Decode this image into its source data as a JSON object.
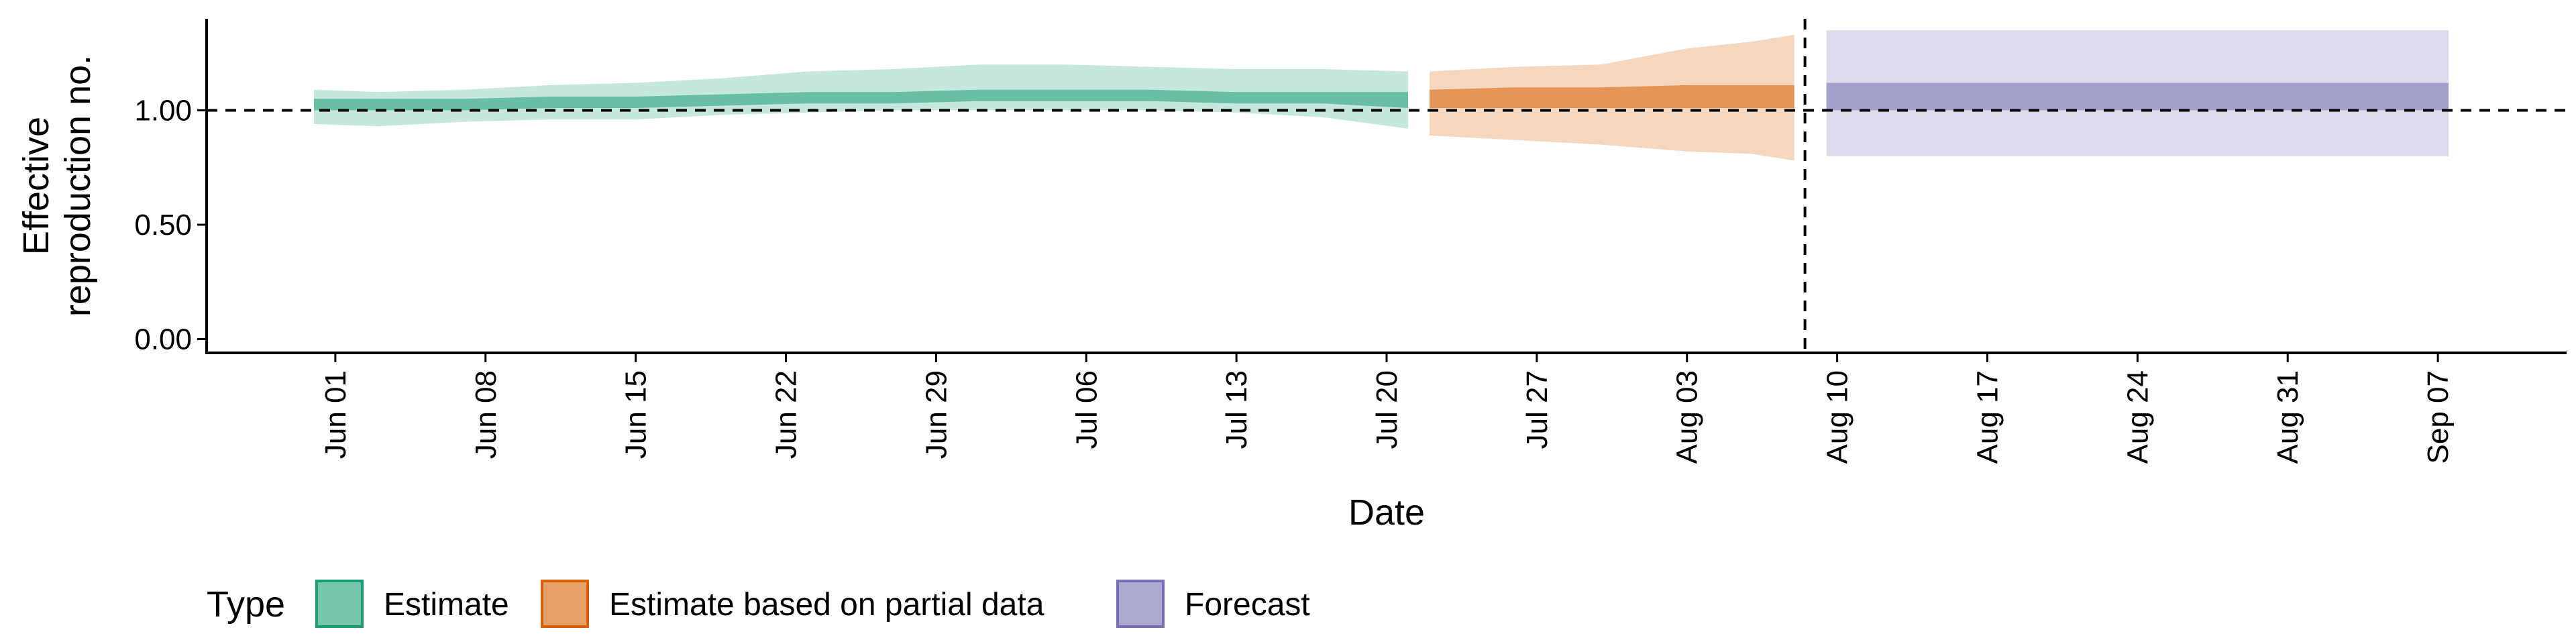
{
  "chart_data": {
    "type": "area",
    "xlabel": "Date",
    "ylabel_lines": [
      "Effective",
      "reproduction no."
    ],
    "ylim": [
      -0.06,
      1.4
    ],
    "y_ticks": [
      {
        "value": 0.0,
        "label": "0.00"
      },
      {
        "value": 0.5,
        "label": "0.50"
      },
      {
        "value": 1.0,
        "label": "1.00"
      }
    ],
    "x_ticks": [
      {
        "day": 0,
        "label": "Jun 01"
      },
      {
        "day": 7,
        "label": "Jun 08"
      },
      {
        "day": 14,
        "label": "Jun 15"
      },
      {
        "day": 21,
        "label": "Jun 22"
      },
      {
        "day": 28,
        "label": "Jun 29"
      },
      {
        "day": 35,
        "label": "Jul 06"
      },
      {
        "day": 42,
        "label": "Jul 13"
      },
      {
        "day": 49,
        "label": "Jul 20"
      },
      {
        "day": 56,
        "label": "Jul 27"
      },
      {
        "day": 63,
        "label": "Aug 03"
      },
      {
        "day": 70,
        "label": "Aug 10"
      },
      {
        "day": 77,
        "label": "Aug 17"
      },
      {
        "day": 84,
        "label": "Aug 24"
      },
      {
        "day": 91,
        "label": "Aug 31"
      },
      {
        "day": 98,
        "label": "Sep 07"
      }
    ],
    "xlim_days": [
      -6,
      104
    ],
    "reference_hline": 1.0,
    "forecast_start_day": 68.5,
    "legend_title": "Type",
    "legend_placement": "bottom-left",
    "series": [
      {
        "name": "Estimate",
        "color": "#1b9e77",
        "outer_opacity": 0.25,
        "inner_opacity": 0.55,
        "segments": [
          {
            "day": -1,
            "lower90": 0.94,
            "upper90": 1.09,
            "lower50": 1.0,
            "upper50": 1.05
          },
          {
            "day": 2,
            "lower90": 0.93,
            "upper90": 1.08,
            "lower50": 1.0,
            "upper50": 1.05
          },
          {
            "day": 6,
            "lower90": 0.95,
            "upper90": 1.09,
            "lower50": 1.0,
            "upper50": 1.05
          },
          {
            "day": 10,
            "lower90": 0.96,
            "upper90": 1.11,
            "lower50": 1.01,
            "upper50": 1.06
          },
          {
            "day": 14,
            "lower90": 0.96,
            "upper90": 1.12,
            "lower50": 1.01,
            "upper50": 1.06
          },
          {
            "day": 18,
            "lower90": 0.98,
            "upper90": 1.14,
            "lower50": 1.02,
            "upper50": 1.07
          },
          {
            "day": 22,
            "lower90": 0.99,
            "upper90": 1.17,
            "lower50": 1.03,
            "upper50": 1.08
          },
          {
            "day": 26,
            "lower90": 1.0,
            "upper90": 1.18,
            "lower50": 1.03,
            "upper50": 1.08
          },
          {
            "day": 30,
            "lower90": 1.0,
            "upper90": 1.2,
            "lower50": 1.04,
            "upper50": 1.09
          },
          {
            "day": 34,
            "lower90": 1.0,
            "upper90": 1.2,
            "lower50": 1.04,
            "upper50": 1.09
          },
          {
            "day": 38,
            "lower90": 1.0,
            "upper90": 1.19,
            "lower50": 1.04,
            "upper50": 1.09
          },
          {
            "day": 42,
            "lower90": 0.99,
            "upper90": 1.18,
            "lower50": 1.03,
            "upper50": 1.08
          },
          {
            "day": 46,
            "lower90": 0.97,
            "upper90": 1.18,
            "lower50": 1.03,
            "upper50": 1.08
          },
          {
            "day": 50,
            "lower90": 0.92,
            "upper90": 1.17,
            "lower50": 1.01,
            "upper50": 1.08
          }
        ]
      },
      {
        "name": "Estimate based on partial data",
        "color": "#d95f02",
        "outer_opacity": 0.25,
        "inner_opacity": 0.55,
        "segments": [
          {
            "day": 51,
            "lower90": 0.89,
            "upper90": 1.17,
            "lower50": 1.01,
            "upper50": 1.09
          },
          {
            "day": 55,
            "lower90": 0.87,
            "upper90": 1.19,
            "lower50": 1.01,
            "upper50": 1.1
          },
          {
            "day": 59,
            "lower90": 0.85,
            "upper90": 1.2,
            "lower50": 1.01,
            "upper50": 1.1
          },
          {
            "day": 63,
            "lower90": 0.82,
            "upper90": 1.27,
            "lower50": 1.01,
            "upper50": 1.11
          },
          {
            "day": 66,
            "lower90": 0.81,
            "upper90": 1.3,
            "lower50": 1.01,
            "upper50": 1.11
          },
          {
            "day": 68,
            "lower90": 0.78,
            "upper90": 1.33,
            "lower50": 1.01,
            "upper50": 1.11
          }
        ]
      },
      {
        "name": "Forecast",
        "color": "#7570b3",
        "outer_opacity": 0.25,
        "inner_opacity": 0.55,
        "segments": [
          {
            "day": 69.5,
            "lower90": 0.8,
            "upper90": 1.35,
            "lower50": 1.0,
            "upper50": 1.12
          },
          {
            "day": 98.5,
            "lower90": 0.8,
            "upper90": 1.35,
            "lower50": 1.0,
            "upper50": 1.12
          }
        ]
      }
    ]
  }
}
